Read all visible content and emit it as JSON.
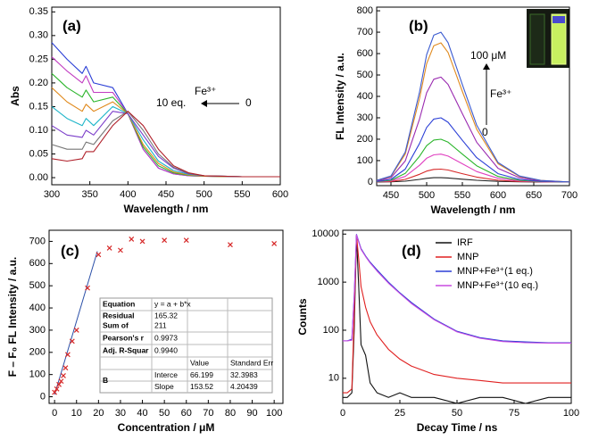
{
  "chart_data": [
    {
      "type": "line",
      "label": "(a)",
      "x_label": "Wavelength / nm",
      "y_label": "Abs",
      "xlim": [
        300,
        600
      ],
      "xticks": [
        300,
        350,
        400,
        450,
        500,
        550,
        600
      ],
      "ylim": [
        -0.015,
        0.36
      ],
      "yticks": [
        {
          "value": 0,
          "label": "0.00"
        },
        0.05,
        {
          "value": 0.1,
          "label": "0.10"
        },
        0.15,
        {
          "value": 0.2,
          "label": "0.20"
        },
        0.25,
        {
          "value": 0.3,
          "label": "0.30"
        },
        0.35
      ],
      "annotations": [
        "Fe³⁺",
        "10 eq.",
        "0"
      ],
      "x": [
        300,
        320,
        340,
        345,
        355,
        380,
        400,
        420,
        440,
        460,
        480,
        500,
        550,
        600
      ],
      "series": [
        {
          "color": "#2b3fd6",
          "values": [
            0.285,
            0.25,
            0.22,
            0.235,
            0.2,
            0.19,
            0.135,
            0.06,
            0.02,
            0.008,
            0.004,
            0.003,
            0.002,
            0.002
          ]
        },
        {
          "color": "#c13cc1",
          "values": [
            0.255,
            0.225,
            0.2,
            0.215,
            0.18,
            0.18,
            0.135,
            0.06,
            0.02,
            0.008,
            0.004,
            0.003,
            0.002,
            0.002
          ]
        },
        {
          "color": "#2bb52b",
          "values": [
            0.22,
            0.19,
            0.17,
            0.185,
            0.16,
            0.17,
            0.135,
            0.065,
            0.025,
            0.01,
            0.005,
            0.003,
            0.002,
            0.002
          ]
        },
        {
          "color": "#e08a1e",
          "values": [
            0.19,
            0.16,
            0.14,
            0.155,
            0.14,
            0.16,
            0.135,
            0.07,
            0.03,
            0.012,
            0.006,
            0.003,
            0.002,
            0.002
          ]
        },
        {
          "color": "#1fb5c9",
          "values": [
            0.15,
            0.125,
            0.11,
            0.125,
            0.11,
            0.15,
            0.135,
            0.08,
            0.035,
            0.015,
            0.007,
            0.004,
            0.002,
            0.002
          ]
        },
        {
          "color": "#7a3cc9",
          "values": [
            0.11,
            0.09,
            0.085,
            0.1,
            0.09,
            0.14,
            0.135,
            0.09,
            0.045,
            0.02,
            0.008,
            0.004,
            0.002,
            0.002
          ]
        },
        {
          "color": "#777777",
          "values": [
            0.07,
            0.06,
            0.06,
            0.075,
            0.07,
            0.12,
            0.14,
            0.1,
            0.05,
            0.022,
            0.009,
            0.004,
            0.002,
            0.002
          ]
        },
        {
          "color": "#b0202a",
          "values": [
            0.04,
            0.035,
            0.04,
            0.055,
            0.055,
            0.11,
            0.14,
            0.11,
            0.06,
            0.025,
            0.01,
            0.004,
            0.002,
            0.002
          ]
        }
      ]
    },
    {
      "type": "line",
      "label": "(b)",
      "x_label": "Wavelength / nm",
      "y_label": "FL Intensity / a.u.",
      "xlim": [
        430,
        700
      ],
      "xticks": [
        450,
        500,
        550,
        600,
        650,
        700
      ],
      "ylim": [
        -17,
        817
      ],
      "yticks": [
        0,
        100,
        200,
        300,
        400,
        500,
        600,
        700,
        800
      ],
      "annotations": [
        "100 μM",
        "Fe³⁺",
        "0"
      ],
      "x": [
        430,
        450,
        470,
        490,
        500,
        510,
        520,
        530,
        550,
        570,
        600,
        630,
        660,
        700
      ],
      "series": [
        {
          "color": "#222222",
          "values": [
            0,
            1,
            4,
            12,
            17,
            20,
            20,
            19,
            13,
            8,
            3,
            1,
            0,
            0
          ]
        },
        {
          "color": "#d62828",
          "values": [
            1,
            2,
            12,
            36,
            51,
            59,
            60,
            56,
            39,
            23,
            8,
            2,
            1,
            0
          ]
        },
        {
          "color": "#e040c0",
          "values": [
            1,
            5,
            26,
            78,
            111,
            127,
            130,
            121,
            85,
            49,
            17,
            5,
            1,
            0
          ]
        },
        {
          "color": "#2bb52b",
          "values": [
            2,
            8,
            40,
            120,
            170,
            196,
            200,
            186,
            130,
            76,
            26,
            8,
            2,
            0
          ]
        },
        {
          "color": "#2b3fd6",
          "values": [
            3,
            12,
            60,
            180,
            255,
            294,
            300,
            279,
            195,
            114,
            39,
            12,
            3,
            0
          ]
        },
        {
          "color": "#9a2ab0",
          "values": [
            5,
            20,
            98,
            294,
            417,
            480,
            490,
            456,
            319,
            186,
            64,
            20,
            5,
            0
          ]
        },
        {
          "color": "#e08a1e",
          "values": [
            7,
            26,
            130,
            390,
            553,
            637,
            650,
            605,
            423,
            247,
            85,
            26,
            7,
            0
          ]
        },
        {
          "color": "#3a5ad0",
          "values": [
            7,
            28,
            140,
            420,
            595,
            686,
            700,
            651,
            455,
            266,
            91,
            28,
            7,
            0
          ]
        }
      ]
    },
    {
      "type": "scatter",
      "label": "(c)",
      "x_label": "Concentration / μM",
      "y_label": "F – F₀ FL Intensity / a.u.",
      "xlim": [
        -2.5,
        104
      ],
      "xticks": [
        0,
        10,
        20,
        30,
        40,
        50,
        60,
        70,
        80,
        90,
        100
      ],
      "ylim": [
        -30,
        750
      ],
      "yticks": [
        0,
        100,
        200,
        300,
        400,
        500,
        600,
        700
      ],
      "color": "#d62828",
      "x": [
        0,
        1,
        2,
        3,
        4,
        5,
        6,
        8,
        10,
        15,
        20,
        25,
        30,
        35,
        40,
        50,
        60,
        80,
        100
      ],
      "values": [
        20,
        35,
        55,
        70,
        95,
        130,
        190,
        250,
        300,
        490,
        640,
        670,
        660,
        710,
        700,
        705,
        705,
        685,
        690
      ],
      "fit": {
        "color": "#2a4fa8",
        "x": [
          0,
          19.5
        ],
        "values": [
          10,
          655
        ]
      },
      "table": [
        [
          "Equation",
          "y = a + b*x",
          null,
          null
        ],
        [
          [
            "Residual",
            "Sum of"
          ],
          [
            "165.32",
            "211"
          ],
          null,
          null
        ],
        [
          "Pearson's r",
          "0.9973",
          null,
          null
        ],
        [
          "Adj. R-Squar",
          "0.9940",
          null,
          null
        ],
        [
          null,
          null,
          "Value",
          "Standard Err"
        ],
        [
          "B",
          "Interce",
          "66.199",
          "32.3983"
        ],
        [
          null,
          "Slope",
          "153.52",
          "4.20439"
        ]
      ]
    },
    {
      "type": "line",
      "label": "(d)",
      "x_label": "Decay Time / ns",
      "y_label": "Counts",
      "xlim": [
        0,
        100
      ],
      "xticks": [
        0,
        25,
        50,
        75,
        100
      ],
      "ylim": [
        3,
        12000
      ],
      "yticks": [
        10,
        100,
        1000,
        10000
      ],
      "log_y": true,
      "legend": "upper right",
      "x": [
        0,
        2,
        4,
        5,
        6,
        7,
        8,
        10,
        12,
        15,
        20,
        25,
        30,
        40,
        50,
        60,
        70,
        80,
        90,
        100
      ],
      "series": [
        {
          "name": "IRF",
          "color": "#111111",
          "values": [
            4,
            4,
            5,
            100,
            9000,
            800,
            50,
            30,
            8,
            5,
            4,
            5,
            4,
            4,
            3,
            4,
            4,
            3,
            4,
            4
          ]
        },
        {
          "name": "MNP",
          "color": "#e02020",
          "values": [
            5,
            5,
            6,
            200,
            9500,
            3000,
            800,
            300,
            150,
            80,
            40,
            25,
            18,
            12,
            10,
            9,
            8,
            8,
            8,
            8
          ]
        },
        {
          "name": "MNP+Fe³⁺(1 eq.)",
          "color": "#2b3fd6",
          "values": [
            60,
            60,
            65,
            500,
            9800,
            7000,
            5000,
            3500,
            2600,
            1800,
            1000,
            600,
            380,
            170,
            95,
            70,
            60,
            57,
            55,
            55
          ]
        },
        {
          "name": "MNP+Fe³⁺(10 eq.)",
          "color": "#c84ce0",
          "values": [
            60,
            60,
            62,
            480,
            9600,
            6800,
            4800,
            3400,
            2500,
            1700,
            950,
            580,
            360,
            165,
            92,
            68,
            58,
            55,
            54,
            54
          ]
        }
      ]
    }
  ]
}
